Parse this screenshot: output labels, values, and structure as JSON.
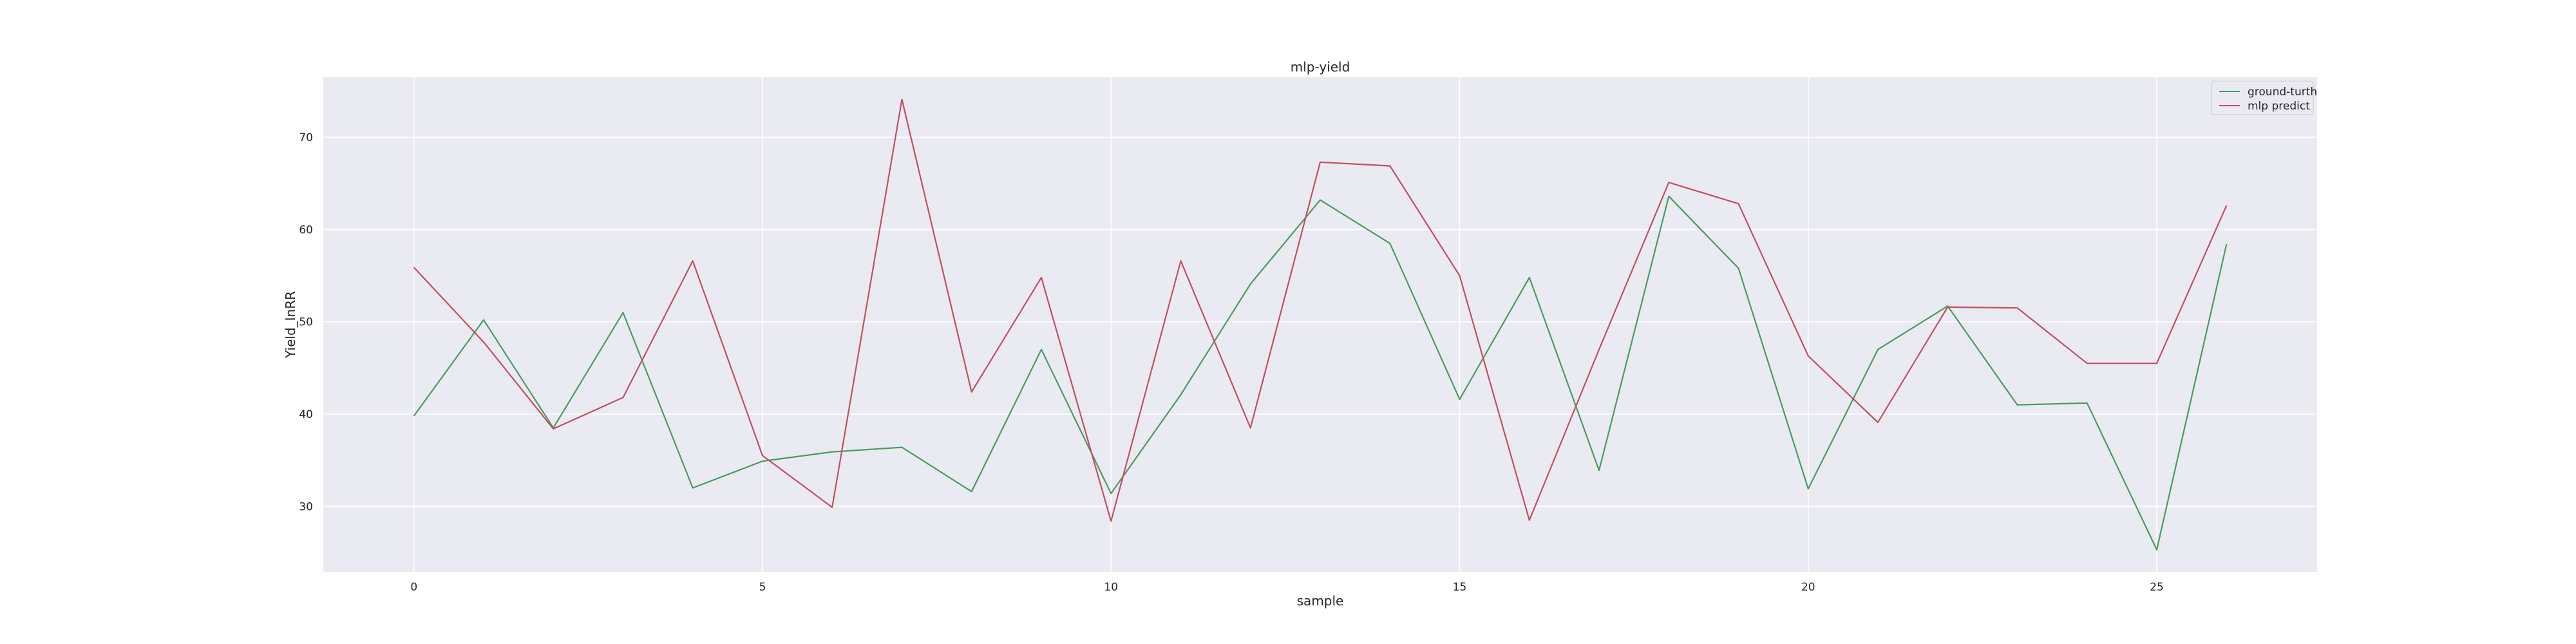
{
  "chart_data": {
    "type": "line",
    "title": "mlp-yield",
    "xlabel": "sample",
    "ylabel": "Yield_InRR",
    "xlim": [
      -1.3,
      27.3
    ],
    "ylim": [
      22.9,
      76.5
    ],
    "xticks": [
      0,
      5,
      10,
      15,
      20,
      25
    ],
    "yticks": [
      30,
      40,
      50,
      60,
      70
    ],
    "grid": true,
    "legend_position": "top-right",
    "x": [
      0,
      1,
      2,
      3,
      4,
      5,
      6,
      7,
      8,
      9,
      10,
      11,
      12,
      13,
      14,
      15,
      16,
      17,
      18,
      19,
      20,
      21,
      22,
      23,
      24,
      25,
      26
    ],
    "series": [
      {
        "name": "ground-turth",
        "color": "#4c9a5f",
        "values": [
          39.8,
          50.2,
          38.5,
          51.0,
          32.0,
          34.9,
          35.9,
          36.4,
          31.6,
          47.0,
          31.4,
          42.1,
          54.1,
          63.2,
          58.5,
          41.6,
          54.8,
          33.9,
          63.6,
          55.8,
          31.9,
          47.0,
          51.7,
          41.0,
          41.2,
          25.3,
          58.4
        ]
      },
      {
        "name": "mlp predict",
        "color": "#c44e64",
        "values": [
          55.9,
          47.8,
          38.4,
          41.8,
          56.6,
          35.5,
          29.9,
          74.1,
          42.4,
          54.8,
          28.4,
          56.6,
          38.5,
          67.3,
          66.9,
          55.0,
          28.5,
          47.0,
          65.1,
          62.8,
          46.3,
          39.1,
          51.6,
          51.5,
          45.5,
          45.5,
          62.6
        ]
      }
    ]
  }
}
